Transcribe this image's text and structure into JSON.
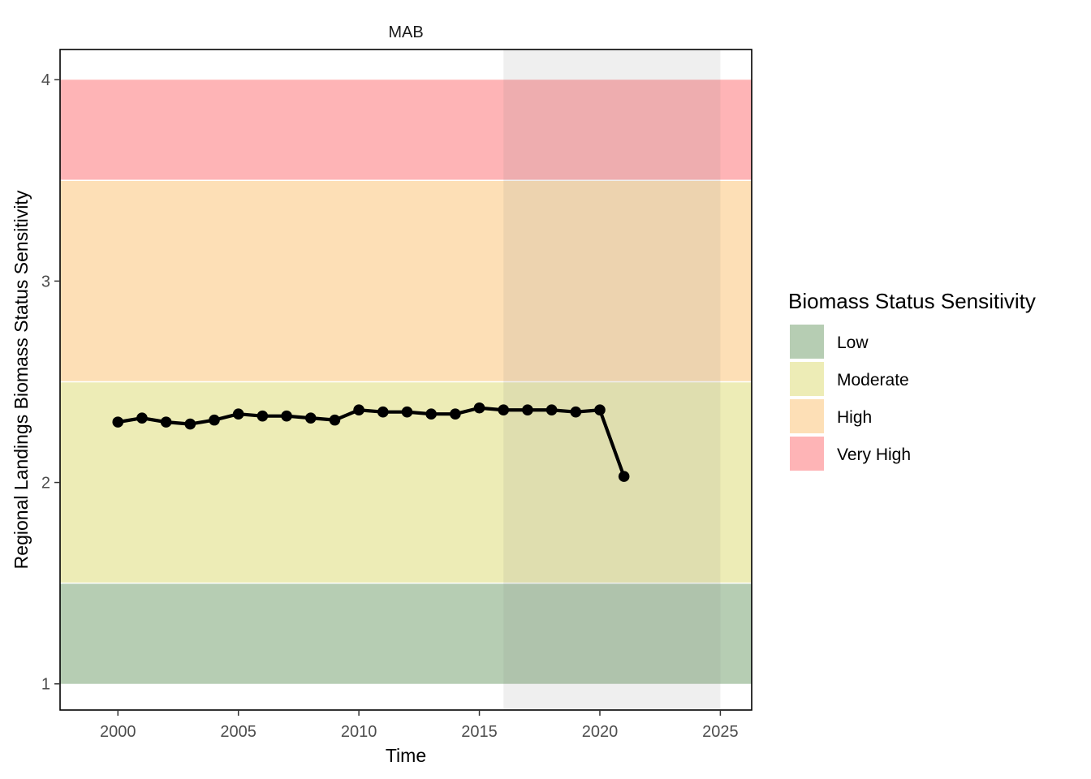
{
  "chart_data": {
    "type": "line",
    "title": "MAB",
    "xlabel": "Time",
    "ylabel": "Regional Landings Biomass Status Sensitivity",
    "xlim": [
      1997.6,
      2026.3
    ],
    "ylim": [
      0.87,
      4.15
    ],
    "x_ticks": [
      2000,
      2005,
      2010,
      2015,
      2020,
      2025
    ],
    "y_ticks": [
      1,
      2,
      3,
      4
    ],
    "grid": false,
    "highlight_period": [
      2016,
      2025
    ],
    "bands": [
      {
        "name": "Low",
        "ymin": 1.0,
        "ymax": 1.5,
        "color": "#b6cdb3"
      },
      {
        "name": "Moderate",
        "ymin": 1.5,
        "ymax": 2.5,
        "color": "#edecb6"
      },
      {
        "name": "High",
        "ymin": 2.5,
        "ymax": 3.5,
        "color": "#fddfb6"
      },
      {
        "name": "Very High",
        "ymin": 3.5,
        "ymax": 4.0,
        "color": "#feb4b6"
      }
    ],
    "legend": {
      "title": "Biomass Status Sensitivity",
      "placement": "right",
      "entries": [
        "Low",
        "Moderate",
        "High",
        "Very High"
      ]
    },
    "series": [
      {
        "x": [
          2000,
          2001,
          2002,
          2003,
          2004,
          2005,
          2006,
          2007,
          2008,
          2009,
          2010,
          2011,
          2012,
          2013,
          2014,
          2015,
          2016,
          2017,
          2018,
          2019,
          2020,
          2021
        ],
        "values": [
          2.3,
          2.32,
          2.3,
          2.29,
          2.31,
          2.34,
          2.33,
          2.33,
          2.32,
          2.31,
          2.36,
          2.35,
          2.35,
          2.34,
          2.34,
          2.37,
          2.36,
          2.36,
          2.36,
          2.35,
          2.36,
          2.03
        ]
      }
    ]
  }
}
